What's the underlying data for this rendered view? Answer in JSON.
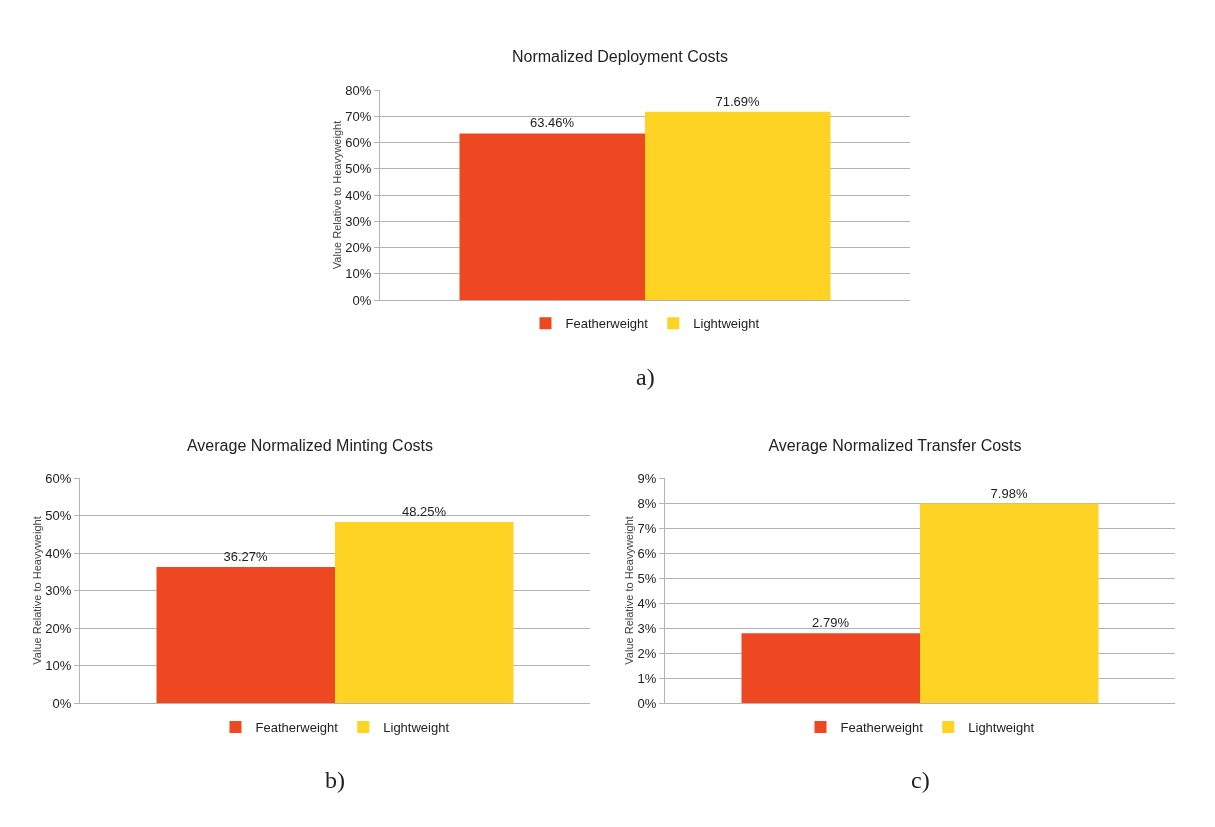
{
  "chart_data": [
    {
      "type": "bar",
      "title": "Normalized Deployment Costs",
      "ylabel": "Value Relative to Heavyweight",
      "categories": [
        null
      ],
      "series": [
        {
          "name": "Featherweight",
          "color": "#ee4823",
          "values": [
            63.46
          ],
          "value_labels": [
            "63.46%"
          ]
        },
        {
          "name": "Lightweight",
          "color": "#fed324",
          "values": [
            71.69
          ],
          "value_labels": [
            "71.69%"
          ]
        }
      ],
      "ylim": [
        0,
        80
      ],
      "yticks": [
        {
          "value": 0,
          "label": "0%"
        },
        {
          "value": 10,
          "label": "10%"
        },
        {
          "value": 20,
          "label": "20%"
        },
        {
          "value": 30,
          "label": "30%"
        },
        {
          "value": 40,
          "label": "40%"
        },
        {
          "value": 50,
          "label": "50%"
        },
        {
          "value": 60,
          "label": "60%"
        },
        {
          "value": 70,
          "label": "70%"
        },
        {
          "value": 80,
          "label": "80%"
        }
      ],
      "grid": "y",
      "legend": "bottom",
      "tick_labels": "y",
      "annotations": [
        "a)"
      ]
    },
    {
      "type": "bar",
      "title": "Average Normalized Minting Costs",
      "ylabel": "Value Relative to Heavyweight",
      "categories": [
        null
      ],
      "series": [
        {
          "name": "Featherweight",
          "color": "#ee4823",
          "values": [
            36.27
          ],
          "value_labels": [
            "36.27%"
          ]
        },
        {
          "name": "Lightweight",
          "color": "#fed324",
          "values": [
            48.25
          ],
          "value_labels": [
            "48.25%"
          ]
        }
      ],
      "ylim": [
        0,
        60
      ],
      "yticks": [
        {
          "value": 0,
          "label": "0%"
        },
        {
          "value": 10,
          "label": "10%"
        },
        {
          "value": 20,
          "label": "20%"
        },
        {
          "value": 30,
          "label": "30%"
        },
        {
          "value": 40,
          "label": "40%"
        },
        {
          "value": 50,
          "label": "50%"
        },
        {
          "value": 60,
          "label": "60%"
        }
      ],
      "grid": "y",
      "legend": "bottom",
      "tick_labels": "y",
      "annotations": [
        "b)"
      ]
    },
    {
      "type": "bar",
      "title": "Average Normalized Transfer Costs",
      "ylabel": "Value Relative to Heavyweight",
      "categories": [
        null
      ],
      "series": [
        {
          "name": "Featherweight",
          "color": "#ee4823",
          "values": [
            2.79
          ],
          "value_labels": [
            "2.79%"
          ]
        },
        {
          "name": "Lightweight",
          "color": "#fed324",
          "values": [
            7.98
          ],
          "value_labels": [
            "7.98%"
          ]
        }
      ],
      "ylim": [
        0,
        9
      ],
      "yticks": [
        {
          "value": 0,
          "label": "0%"
        },
        {
          "value": 1,
          "label": "1%"
        },
        {
          "value": 2,
          "label": "2%"
        },
        {
          "value": 3,
          "label": "3%"
        },
        {
          "value": 4,
          "label": "4%"
        },
        {
          "value": 5,
          "label": "5%"
        },
        {
          "value": 6,
          "label": "6%"
        },
        {
          "value": 7,
          "label": "7%"
        },
        {
          "value": 8,
          "label": "8%"
        },
        {
          "value": 9,
          "label": "9%"
        }
      ],
      "grid": "y",
      "legend": "bottom",
      "tick_labels": "y",
      "annotations": [
        "c)"
      ]
    }
  ]
}
